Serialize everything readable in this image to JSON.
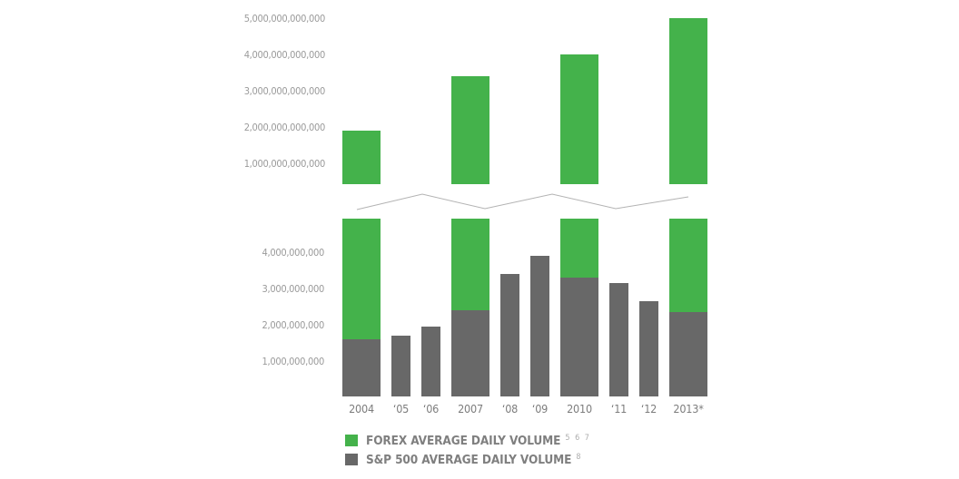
{
  "chart_data": {
    "type": "bar",
    "subtype": "broken-axis-stacked-comparison",
    "title": "",
    "xlabel": "",
    "ylabel": "",
    "grid": false,
    "axis_break": true,
    "legend_position": "bottom-left",
    "categories": [
      "2004",
      "‘05",
      "‘06",
      "2007",
      "‘08",
      "‘09",
      "2010",
      "‘11",
      "‘12",
      "2013*"
    ],
    "series": [
      {
        "name": "FOREX AVERAGE DAILY VOLUME",
        "color": "#44b24b",
        "values": [
          1900000000000,
          null,
          null,
          3400000000000,
          null,
          null,
          4000000000000,
          null,
          null,
          5000000000000
        ]
      },
      {
        "name": "S&P 500 AVERAGE DAILY VOLUME",
        "color": "#686868",
        "values": [
          1600000000,
          1700000000,
          1950000000,
          2400000000,
          3400000000,
          3900000000,
          3300000000,
          3150000000,
          2650000000,
          2350000000
        ]
      }
    ],
    "axes": {
      "top_panel": {
        "range": [
          0,
          5000000000000
        ],
        "ticks": [
          {
            "value": 5000000000000,
            "label": "5,000,000,000,000"
          },
          {
            "value": 4000000000000,
            "label": "4,000,000,000,000"
          },
          {
            "value": 3000000000000,
            "label": "3,000,000,000,000"
          },
          {
            "value": 2000000000000,
            "label": "2,000,000,000,000"
          },
          {
            "value": 1000000000000,
            "label": "1,000,000,000,000"
          }
        ]
      },
      "bottom_panel": {
        "range": [
          0,
          4000000000
        ],
        "ticks": [
          {
            "value": 4000000000,
            "label": "4,000,000,000"
          },
          {
            "value": 3000000000,
            "label": "3,000,000,000"
          },
          {
            "value": 2000000000,
            "label": "2,000,000,000"
          },
          {
            "value": 1000000000,
            "label": "1,000,000,000"
          }
        ]
      }
    }
  },
  "legend": {
    "items": [
      {
        "label": "FOREX AVERAGE DAILY VOLUME",
        "superscript": "5 6 7",
        "color": "#44b24b"
      },
      {
        "label": "S&P 500 AVERAGE DAILY VOLUME",
        "superscript": "8",
        "color": "#686868"
      }
    ]
  },
  "colors": {
    "forex_green": "#44b24b",
    "sp500_gray": "#686868",
    "y_tick_gray": "#9a9a9a",
    "x_label_gray": "#7d7d7d",
    "legend_text_gray": "#7f7f7f",
    "superscript_gray": "#adadad",
    "break_line_gray": "#b3b3b3",
    "background": "#ffffff"
  }
}
